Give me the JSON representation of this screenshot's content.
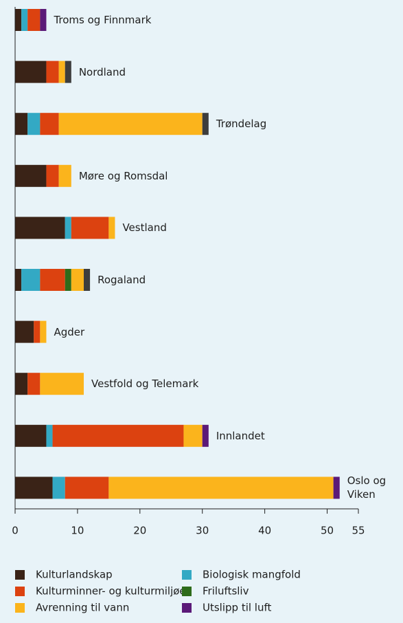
{
  "chart_data": {
    "type": "stacked-barh",
    "categories": [
      "Troms og Finnmark",
      "Nordland",
      "Trøndelag",
      "Møre og Romsdal",
      "Vestland",
      "Rogaland",
      "Agder",
      "Vestfold og Telemark",
      "Innlandet",
      "Oslo og Viken"
    ],
    "series": [
      {
        "name": "Kulturlandskap",
        "color": "#3a2317",
        "values": [
          1,
          5,
          2,
          5,
          8,
          1,
          3,
          2,
          5,
          6
        ]
      },
      {
        "name": "Biologisk mangfold",
        "color": "#33a9c4",
        "values": [
          1,
          0,
          2,
          0,
          1,
          3,
          0,
          0,
          1,
          2
        ]
      },
      {
        "name": "Kulturminner- og kulturmiljøer",
        "color": "#dc4210",
        "values": [
          2,
          2,
          3,
          2,
          6,
          4,
          1,
          2,
          21,
          7
        ]
      },
      {
        "name": "Friluftsliv",
        "color": "#2e6b1a",
        "values": [
          0,
          0,
          0,
          0,
          0,
          1,
          0,
          0,
          0,
          0
        ]
      },
      {
        "name": "Avrenning til vann",
        "color": "#fbb41c",
        "values": [
          0,
          1,
          23,
          2,
          1,
          2,
          1,
          7,
          3,
          36
        ]
      },
      {
        "color": "#3d3d3d",
        "values": [
          0,
          1,
          1,
          0,
          0,
          1,
          0,
          0,
          0,
          0
        ]
      },
      {
        "name": "Utslipp til luft",
        "color": "#5b1a78",
        "values": [
          1,
          0,
          0,
          0,
          0,
          0,
          0,
          0,
          1,
          1
        ]
      }
    ],
    "xlim": [
      0,
      55
    ],
    "xticks": [
      0,
      10,
      20,
      30,
      40,
      50,
      55
    ]
  }
}
